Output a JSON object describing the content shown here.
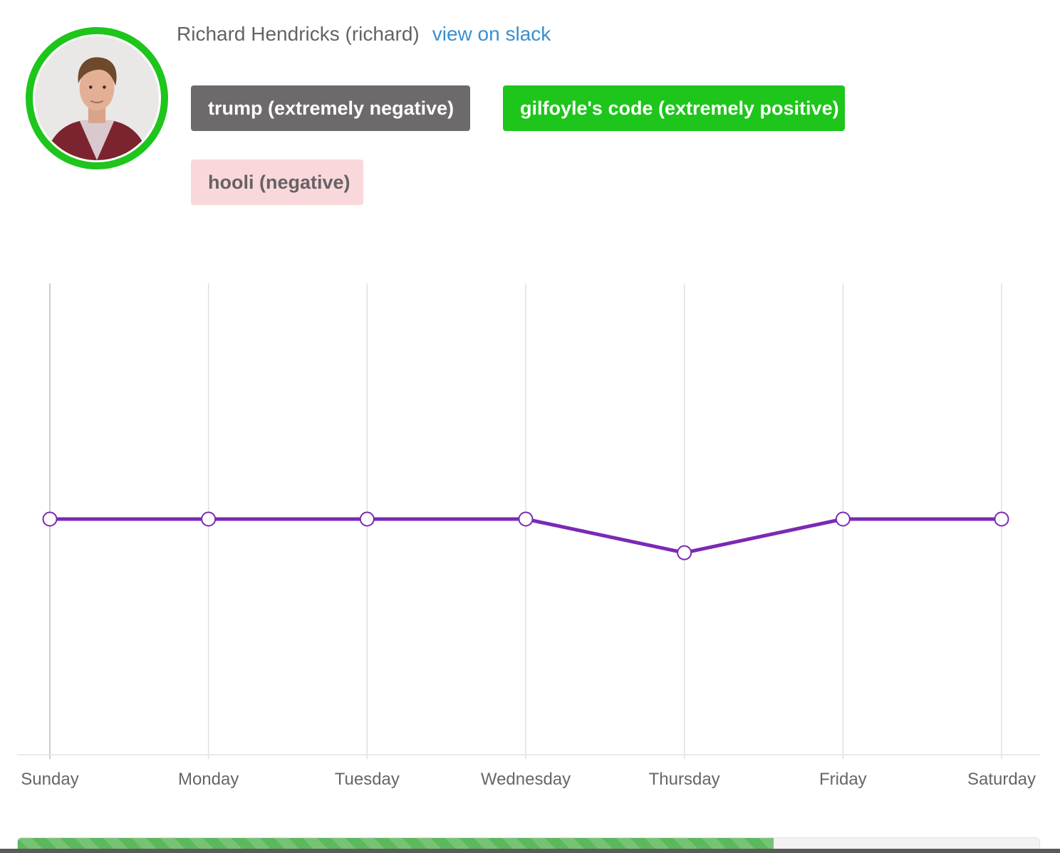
{
  "user": {
    "display_name": "Richard Hendricks (richard)",
    "slack_link": "view on slack",
    "avatar_ring_color": "#1ec51b"
  },
  "topics": [
    {
      "label": "trump (extremely negative)",
      "sentiment": "extremely negative",
      "color": "#6d6a6b"
    },
    {
      "label": "gilfoyle's code (extremely positive)",
      "sentiment": "extremely positive",
      "color": "#1ec51b"
    },
    {
      "label": "hooli (negative)",
      "sentiment": "negative",
      "color": "#f9d8db"
    }
  ],
  "chart_data": {
    "type": "line",
    "categories": [
      "Sunday",
      "Monday",
      "Tuesday",
      "Wednesday",
      "Thursday",
      "Friday",
      "Saturday"
    ],
    "series": [
      {
        "values": [
          0,
          0,
          0,
          0,
          -0.2,
          0,
          0
        ],
        "color": "#7b29b5"
      }
    ],
    "ylim": [
      -1.4,
      1.4
    ],
    "grid": "vertical"
  },
  "progress": {
    "value": 74,
    "label": "74%"
  }
}
